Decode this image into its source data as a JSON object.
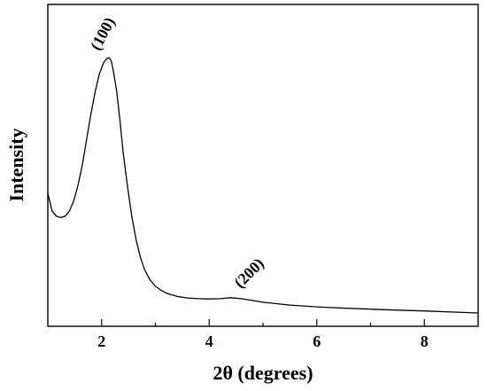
{
  "chart_data": {
    "type": "line",
    "xlabel": "2θ (degrees)",
    "ylabel": "Intensity",
    "xlim": [
      1,
      9
    ],
    "ylim": [
      0,
      100
    ],
    "x_ticks": [
      2,
      4,
      6,
      8
    ],
    "x_tick_labels": [
      "2",
      "4",
      "6",
      "8"
    ],
    "y_ticks_shown": false,
    "grid": false,
    "legend": "none",
    "series": [
      {
        "color": "#000000",
        "x": [
          1.0,
          1.08,
          1.16,
          1.24,
          1.32,
          1.4,
          1.48,
          1.56,
          1.64,
          1.72,
          1.8,
          1.88,
          1.96,
          2.04,
          2.1,
          2.14,
          2.18,
          2.22,
          2.28,
          2.34,
          2.4,
          2.48,
          2.56,
          2.64,
          2.72,
          2.8,
          2.9,
          3.0,
          3.1,
          3.2,
          3.4,
          3.6,
          3.8,
          4.0,
          4.2,
          4.4,
          4.6,
          4.8,
          5.0,
          5.5,
          6.0,
          6.5,
          7.0,
          7.5,
          8.0,
          8.5,
          9.0
        ],
        "y": [
          47,
          40,
          38,
          37.5,
          38,
          40,
          44,
          50,
          58,
          68,
          78,
          87,
          94,
          98.5,
          100,
          100.3,
          99,
          95,
          87,
          76,
          63,
          50,
          38,
          29,
          22,
          17,
          13,
          10.5,
          9,
          7.8,
          6.5,
          5.9,
          5.6,
          5.5,
          5.6,
          6.0,
          5.6,
          4.9,
          4.2,
          3.1,
          2.4,
          1.9,
          1.5,
          1.1,
          0.8,
          0.4,
          0.0
        ]
      }
    ],
    "annotations": [
      {
        "text": "(100)",
        "x": 2.15,
        "y": 100
      },
      {
        "text": "(200)",
        "x": 4.45,
        "y": 6
      }
    ]
  }
}
